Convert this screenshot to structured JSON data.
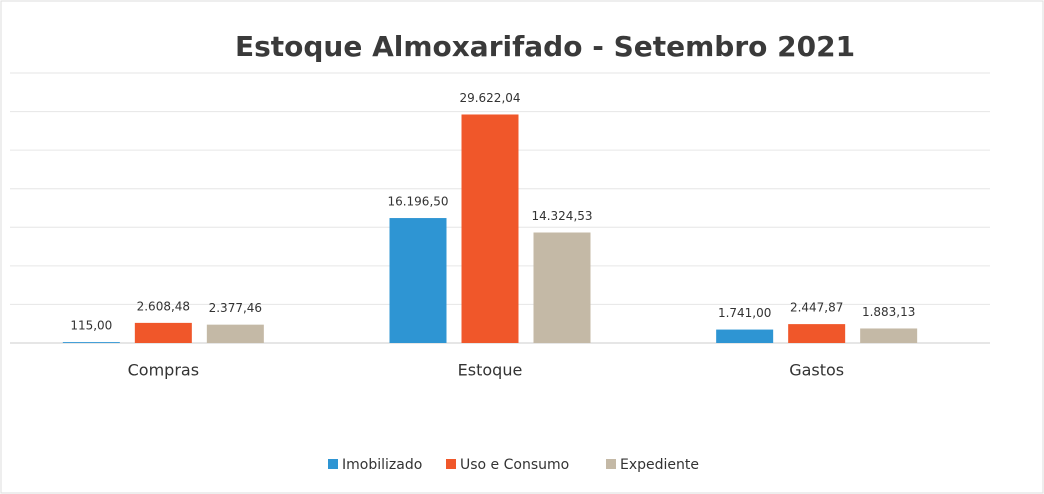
{
  "chart_data": {
    "type": "bar",
    "title": "Estoque Almoxarifado  - Setembro 2021",
    "categories": [
      "Compras",
      "Estoque",
      "Gastos"
    ],
    "series": [
      {
        "name": "Imobilizado",
        "color": "#2e95d3",
        "values": [
          115.0,
          16196.5,
          1741.0
        ],
        "value_labels": [
          "115,00",
          "16.196,50",
          "1.741,00"
        ]
      },
      {
        "name": "Uso e Consumo",
        "color": "#f0572a",
        "values": [
          2608.48,
          29622.04,
          2447.87
        ],
        "value_labels": [
          "2.608,48",
          "29.622,04",
          "2.447,87"
        ]
      },
      {
        "name": "Expediente",
        "color": "#c4b9a6",
        "values": [
          2377.46,
          14324.53,
          1883.13
        ],
        "value_labels": [
          "2.377,46",
          "14.324,53",
          "1.883,13"
        ]
      }
    ],
    "ylim": [
      0,
      35000
    ],
    "yticks": [
      0,
      5000,
      10000,
      15000,
      20000,
      25000,
      30000,
      35000
    ],
    "grid": true,
    "legend": "bottom"
  }
}
